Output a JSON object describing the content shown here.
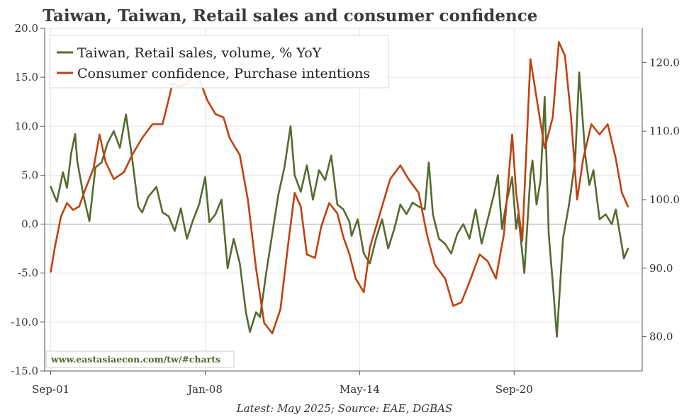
{
  "chart_data": {
    "type": "line",
    "title": "Taiwan, Taiwan, Retail sales and consumer confidence",
    "source": "Latest: May 2025; Source: EAE, DGBAS",
    "watermark": "www.eastasiaecon.com/tw/#charts",
    "x_tick_labels": [
      "Sep-01",
      "Jan-08",
      "May-14",
      "Sep-20"
    ],
    "x_tick_dates": [
      "2001-09",
      "2008-01",
      "2014-05",
      "2020-09"
    ],
    "x_range": [
      "2001-06",
      "2025-12"
    ],
    "y_left": {
      "range": [
        -15,
        20
      ],
      "ticks": [
        "-15.0",
        "-10.0",
        "-5.0",
        "0.0",
        "5.0",
        "10.0",
        "15.0",
        "20.0"
      ]
    },
    "y_right": {
      "range": [
        75,
        125
      ],
      "ticks": [
        "80.0",
        "90.0",
        "100.0",
        "110.0",
        "120.0"
      ]
    },
    "grid": true,
    "legend_position": "top-left",
    "series": [
      {
        "name": "Taiwan, Retail sales, volume, % YoY",
        "color": "#556b2f",
        "axis": "left",
        "points": [
          [
            "2001-09",
            3.8
          ],
          [
            "2001-12",
            2.3
          ],
          [
            "2002-03",
            5.3
          ],
          [
            "2002-05",
            3.7
          ],
          [
            "2002-07",
            7.2
          ],
          [
            "2002-09",
            9.2
          ],
          [
            "2002-10",
            6.5
          ],
          [
            "2003-01",
            3.0
          ],
          [
            "2003-04",
            0.3
          ],
          [
            "2003-07",
            5.8
          ],
          [
            "2003-10",
            6.3
          ],
          [
            "2004-01",
            8.3
          ],
          [
            "2004-04",
            9.5
          ],
          [
            "2004-07",
            7.8
          ],
          [
            "2004-10",
            11.2
          ],
          [
            "2005-01",
            6.8
          ],
          [
            "2005-04",
            1.8
          ],
          [
            "2005-06",
            1.2
          ],
          [
            "2005-09",
            2.8
          ],
          [
            "2006-01",
            3.8
          ],
          [
            "2006-04",
            1.2
          ],
          [
            "2006-07",
            0.8
          ],
          [
            "2006-10",
            -0.7
          ],
          [
            "2007-01",
            1.6
          ],
          [
            "2007-04",
            -1.5
          ],
          [
            "2007-07",
            0.4
          ],
          [
            "2007-10",
            2.0
          ],
          [
            "2008-01",
            4.8
          ],
          [
            "2008-03",
            0.2
          ],
          [
            "2008-06",
            1.0
          ],
          [
            "2008-09",
            2.5
          ],
          [
            "2008-12",
            -4.5
          ],
          [
            "2009-03",
            -1.5
          ],
          [
            "2009-06",
            -4.0
          ],
          [
            "2009-09",
            -9.0
          ],
          [
            "2009-11",
            -11.0
          ],
          [
            "2010-02",
            -9.0
          ],
          [
            "2010-04",
            -9.5
          ],
          [
            "2010-07",
            -5.0
          ],
          [
            "2010-10",
            -1.0
          ],
          [
            "2011-01",
            3.0
          ],
          [
            "2011-04",
            5.8
          ],
          [
            "2011-07",
            10.0
          ],
          [
            "2011-09",
            5.0
          ],
          [
            "2011-12",
            3.3
          ],
          [
            "2012-03",
            6.0
          ],
          [
            "2012-06",
            2.5
          ],
          [
            "2012-09",
            5.5
          ],
          [
            "2012-12",
            4.5
          ],
          [
            "2013-03",
            7.0
          ],
          [
            "2013-06",
            2.0
          ],
          [
            "2013-09",
            1.5
          ],
          [
            "2013-12",
            0.2
          ],
          [
            "2014-01",
            -1.2
          ],
          [
            "2014-04",
            0.5
          ],
          [
            "2014-07",
            -3.0
          ],
          [
            "2014-10",
            -4.0
          ],
          [
            "2015-01",
            -1.5
          ],
          [
            "2015-04",
            0.5
          ],
          [
            "2015-07",
            -2.5
          ],
          [
            "2015-10",
            -0.5
          ],
          [
            "2016-01",
            2.0
          ],
          [
            "2016-04",
            1.0
          ],
          [
            "2016-07",
            2.2
          ],
          [
            "2016-10",
            1.8
          ],
          [
            "2017-01",
            1.5
          ],
          [
            "2017-03",
            6.3
          ],
          [
            "2017-05",
            1.0
          ],
          [
            "2017-08",
            -1.5
          ],
          [
            "2017-11",
            -2.0
          ],
          [
            "2018-02",
            -3.0
          ],
          [
            "2018-05",
            -1.0
          ],
          [
            "2018-08",
            0.0
          ],
          [
            "2018-11",
            -1.5
          ],
          [
            "2019-02",
            1.5
          ],
          [
            "2019-05",
            -2.0
          ],
          [
            "2019-08",
            0.5
          ],
          [
            "2019-11",
            3.0
          ],
          [
            "2020-01",
            5.0
          ],
          [
            "2020-03",
            -0.5
          ],
          [
            "2020-05",
            2.0
          ],
          [
            "2020-08",
            4.8
          ],
          [
            "2020-10",
            -0.5
          ],
          [
            "2020-11",
            1.0
          ],
          [
            "2021-02",
            -5.0
          ],
          [
            "2021-05",
            5.0
          ],
          [
            "2021-06",
            6.5
          ],
          [
            "2021-08",
            2.0
          ],
          [
            "2021-10",
            4.5
          ],
          [
            "2021-12",
            13.0
          ],
          [
            "2022-01",
            6.0
          ],
          [
            "2022-02",
            -1.0
          ],
          [
            "2022-04",
            -6.0
          ],
          [
            "2022-06",
            -11.5
          ],
          [
            "2022-09",
            -1.5
          ],
          [
            "2022-12",
            2.0
          ],
          [
            "2023-03",
            6.5
          ],
          [
            "2023-05",
            15.5
          ],
          [
            "2023-08",
            7.0
          ],
          [
            "2023-10",
            4.0
          ],
          [
            "2023-12",
            5.5
          ],
          [
            "2024-03",
            0.5
          ],
          [
            "2024-06",
            1.0
          ],
          [
            "2024-09",
            0.0
          ],
          [
            "2024-11",
            1.5
          ],
          [
            "2025-01",
            -1.0
          ],
          [
            "2025-03",
            -3.5
          ],
          [
            "2025-05",
            -2.5
          ]
        ]
      },
      {
        "name": "Consumer confidence, Purchase intentions",
        "color": "#c0410f",
        "axis": "right",
        "points": [
          [
            "2001-09",
            89.5
          ],
          [
            "2001-11",
            93
          ],
          [
            "2002-02",
            97.5
          ],
          [
            "2002-05",
            99.5
          ],
          [
            "2002-08",
            98.5
          ],
          [
            "2002-11",
            99.0
          ],
          [
            "2003-02",
            101.5
          ],
          [
            "2003-06",
            104.5
          ],
          [
            "2003-09",
            109.5
          ],
          [
            "2003-12",
            105.5
          ],
          [
            "2004-04",
            103.0
          ],
          [
            "2004-09",
            104.0
          ],
          [
            "2005-01",
            106.5
          ],
          [
            "2005-06",
            109.0
          ],
          [
            "2005-11",
            111.0
          ],
          [
            "2006-04",
            111.0
          ],
          [
            "2006-09",
            117.0
          ],
          [
            "2006-12",
            116.5
          ],
          [
            "2007-04",
            117.0
          ],
          [
            "2007-09",
            118.5
          ],
          [
            "2008-02",
            114.5
          ],
          [
            "2008-06",
            112.5
          ],
          [
            "2008-10",
            112.0
          ],
          [
            "2009-01",
            109.0
          ],
          [
            "2009-06",
            106.5
          ],
          [
            "2009-10",
            100.0
          ],
          [
            "2010-02",
            90.0
          ],
          [
            "2010-06",
            82.0
          ],
          [
            "2010-10",
            80.5
          ],
          [
            "2011-02",
            84.0
          ],
          [
            "2011-06",
            94.0
          ],
          [
            "2011-09",
            101.0
          ],
          [
            "2011-12",
            99.0
          ],
          [
            "2012-03",
            92.0
          ],
          [
            "2012-07",
            91.5
          ],
          [
            "2012-10",
            96.0
          ],
          [
            "2013-02",
            99.5
          ],
          [
            "2013-06",
            98.0
          ],
          [
            "2013-09",
            94.5
          ],
          [
            "2013-12",
            92.0
          ],
          [
            "2014-03",
            88.5
          ],
          [
            "2014-07",
            86.5
          ],
          [
            "2014-10",
            93.0
          ],
          [
            "2015-03",
            98.0
          ],
          [
            "2015-08",
            103.0
          ],
          [
            "2016-01",
            105.0
          ],
          [
            "2016-05",
            103.0
          ],
          [
            "2016-10",
            101.0
          ],
          [
            "2017-02",
            95.0
          ],
          [
            "2017-06",
            90.5
          ],
          [
            "2017-11",
            88.5
          ],
          [
            "2018-03",
            84.5
          ],
          [
            "2018-07",
            85.0
          ],
          [
            "2018-11",
            88.0
          ],
          [
            "2019-04",
            92.0
          ],
          [
            "2019-08",
            91.0
          ],
          [
            "2019-12",
            88.5
          ],
          [
            "2020-04",
            95.0
          ],
          [
            "2020-08",
            109.5
          ],
          [
            "2020-10",
            101.0
          ],
          [
            "2021-01",
            94.0
          ],
          [
            "2021-05",
            120.5
          ],
          [
            "2021-09",
            113.0
          ],
          [
            "2021-12",
            107.5
          ],
          [
            "2022-04",
            112.0
          ],
          [
            "2022-07",
            123.0
          ],
          [
            "2022-10",
            121.0
          ],
          [
            "2023-01",
            112.0
          ],
          [
            "2023-04",
            100.0
          ],
          [
            "2023-07",
            106.0
          ],
          [
            "2023-11",
            111.0
          ],
          [
            "2024-03",
            109.5
          ],
          [
            "2024-07",
            111.0
          ],
          [
            "2024-11",
            106.0
          ],
          [
            "2025-02",
            101.0
          ],
          [
            "2025-05",
            99.0
          ]
        ]
      }
    ]
  }
}
